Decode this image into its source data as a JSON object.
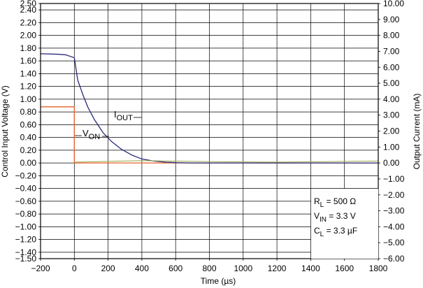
{
  "chart_data": {
    "type": "line",
    "xlabel": "Time (µs)",
    "ylabel_left": "Control Input Voltage (V)",
    "ylabel_right": "Output Current (mA)",
    "xlim": [
      -200,
      1800
    ],
    "x_ticks": [
      "−200",
      "0",
      "200",
      "400",
      "600",
      "800",
      "1000",
      "1200",
      "1400",
      "1600",
      "1800"
    ],
    "ylim_left": [
      -1.5,
      2.5
    ],
    "y_left_ticks": [
      "2.50",
      "2.40",
      "2.20",
      "2.00",
      "1.80",
      "1.60",
      "1.40",
      "1.20",
      "1.00",
      "0.80",
      "0.60",
      "0.40",
      "0.20",
      "0.00",
      "−0.20",
      "−0.40",
      "−0.60",
      "−0.80",
      "−1.00",
      "−1.20",
      "−1.40",
      "−1.50"
    ],
    "ylim_right": [
      -6.0,
      10.0
    ],
    "y_right_ticks": [
      "10.00",
      "9.00",
      "8.00",
      "7.00",
      "6.00",
      "5.00",
      "4.00",
      "3.00",
      "2.00",
      "1.00",
      "0.00",
      "−1.00",
      "−2.00",
      "−3.00",
      "−4.00",
      "−5.00",
      "−6.00"
    ],
    "grid": true,
    "colors": {
      "v_on": "#e8602c",
      "i_out": "#2a2a7c",
      "baseline": "#9aa84a",
      "grid": "#000000"
    },
    "series": [
      {
        "name": "V_ON",
        "axis": "left",
        "x": [
          -200,
          0,
          0,
          100,
          300,
          600,
          1000,
          1400,
          1800
        ],
        "y": [
          0.88,
          0.88,
          0.0,
          0.0,
          0.0,
          0.0,
          0.0,
          0.0,
          0.0
        ]
      },
      {
        "name": "I_OUT",
        "axis": "right",
        "x": [
          -200,
          -100,
          -50,
          0,
          20,
          50,
          80,
          120,
          170,
          220,
          280,
          340,
          400,
          470,
          540,
          600,
          700,
          800,
          1000,
          1400,
          1800
        ],
        "y": [
          6.85,
          6.82,
          6.78,
          6.6,
          5.2,
          4.3,
          3.5,
          2.7,
          1.9,
          1.35,
          0.85,
          0.5,
          0.25,
          0.12,
          0.05,
          0.02,
          0.0,
          0.0,
          0.0,
          0.0,
          0.0
        ]
      },
      {
        "name": "baseline",
        "axis": "right",
        "x": [
          0,
          400,
          800,
          1200,
          1800
        ],
        "y": [
          0.05,
          0.15,
          0.08,
          0.05,
          0.12
        ]
      }
    ],
    "annotations": {
      "i_out_label": {
        "main": "I",
        "sub": "OUT"
      },
      "v_on_label": {
        "main": "V",
        "sub": "ON"
      },
      "conditions": [
        {
          "main": "R",
          "sub": "L",
          "rest": " = 500 Ω"
        },
        {
          "main": "V",
          "sub": "IN",
          "rest": " = 3.3 V"
        },
        {
          "main": "C",
          "sub": "L",
          "rest": " = 3.3 µF"
        }
      ]
    }
  }
}
